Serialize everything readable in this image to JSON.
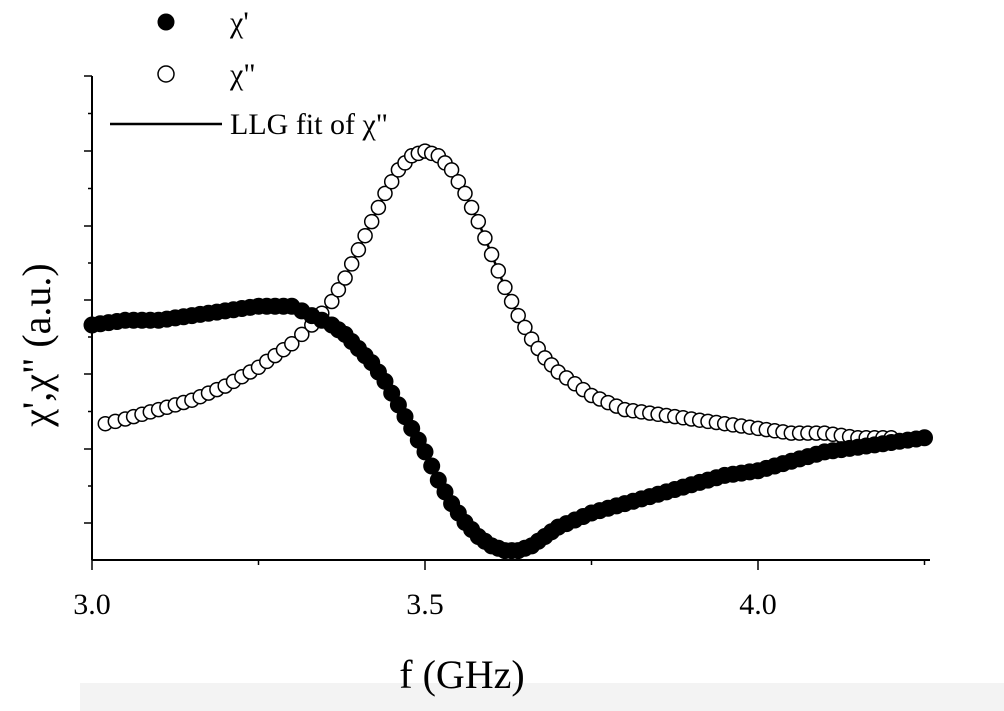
{
  "chart_data": {
    "type": "scatter",
    "title": "",
    "xlabel": "f (GHz)",
    "ylabel": "χ',χ\" (a.u.)",
    "xlim": [
      3.0,
      4.25
    ],
    "ylim": [
      0,
      1
    ],
    "x_ticks": [
      {
        "value": 3.0,
        "label": "3.0"
      },
      {
        "value": 3.5,
        "label": "3.5"
      },
      {
        "value": 4.0,
        "label": "4.0"
      }
    ],
    "y_tick_labels_shown": false,
    "legend": [
      {
        "marker": "filled-circle",
        "label": "χ'"
      },
      {
        "marker": "open-circle",
        "label": "χ\""
      },
      {
        "marker": "line",
        "label": "LLG fit of χ\""
      }
    ],
    "legend_position": "top-left",
    "series": [
      {
        "name": "χ'",
        "marker": "filled",
        "x": [
          3.0,
          3.05,
          3.1,
          3.15,
          3.2,
          3.25,
          3.3,
          3.33,
          3.36,
          3.38,
          3.4,
          3.42,
          3.44,
          3.46,
          3.48,
          3.5,
          3.52,
          3.54,
          3.56,
          3.58,
          3.6,
          3.62,
          3.64,
          3.66,
          3.68,
          3.7,
          3.75,
          3.8,
          3.85,
          3.9,
          3.95,
          4.0,
          4.05,
          4.1,
          4.15,
          4.2,
          4.25
        ],
        "y": [
          0.5,
          0.51,
          0.51,
          0.52,
          0.53,
          0.54,
          0.54,
          0.52,
          0.5,
          0.48,
          0.45,
          0.42,
          0.38,
          0.33,
          0.28,
          0.23,
          0.17,
          0.12,
          0.08,
          0.05,
          0.03,
          0.02,
          0.02,
          0.03,
          0.05,
          0.07,
          0.1,
          0.12,
          0.14,
          0.16,
          0.18,
          0.19,
          0.21,
          0.23,
          0.24,
          0.25,
          0.26
        ]
      },
      {
        "name": "χ\"",
        "marker": "open",
        "x": [
          3.02,
          3.05,
          3.1,
          3.15,
          3.2,
          3.25,
          3.3,
          3.33,
          3.36,
          3.38,
          3.4,
          3.42,
          3.44,
          3.46,
          3.48,
          3.5,
          3.52,
          3.54,
          3.56,
          3.58,
          3.6,
          3.62,
          3.64,
          3.66,
          3.68,
          3.7,
          3.75,
          3.8,
          3.85,
          3.9,
          3.95,
          4.0,
          4.05,
          4.1,
          4.15,
          4.2
        ],
        "y": [
          0.29,
          0.3,
          0.32,
          0.34,
          0.37,
          0.41,
          0.46,
          0.5,
          0.55,
          0.6,
          0.66,
          0.72,
          0.78,
          0.83,
          0.86,
          0.87,
          0.86,
          0.83,
          0.78,
          0.72,
          0.65,
          0.58,
          0.52,
          0.47,
          0.43,
          0.4,
          0.35,
          0.32,
          0.31,
          0.3,
          0.29,
          0.28,
          0.27,
          0.27,
          0.26,
          0.26
        ]
      },
      {
        "name": "LLG fit of χ\"",
        "marker": "line",
        "x": [
          3.02,
          3.05,
          3.1,
          3.15,
          3.2,
          3.25,
          3.3,
          3.33,
          3.36,
          3.38,
          3.4,
          3.42,
          3.44,
          3.46,
          3.48,
          3.5,
          3.52,
          3.54,
          3.56,
          3.58,
          3.6,
          3.62,
          3.64,
          3.66,
          3.68,
          3.7,
          3.75,
          3.8,
          3.85,
          3.9,
          3.95,
          4.0,
          4.05,
          4.1,
          4.15,
          4.2
        ],
        "y": [
          0.29,
          0.3,
          0.32,
          0.34,
          0.37,
          0.41,
          0.46,
          0.5,
          0.55,
          0.6,
          0.66,
          0.72,
          0.78,
          0.83,
          0.86,
          0.87,
          0.86,
          0.83,
          0.78,
          0.72,
          0.65,
          0.58,
          0.52,
          0.47,
          0.43,
          0.4,
          0.35,
          0.32,
          0.31,
          0.3,
          0.29,
          0.28,
          0.27,
          0.27,
          0.26,
          0.26
        ]
      }
    ]
  }
}
